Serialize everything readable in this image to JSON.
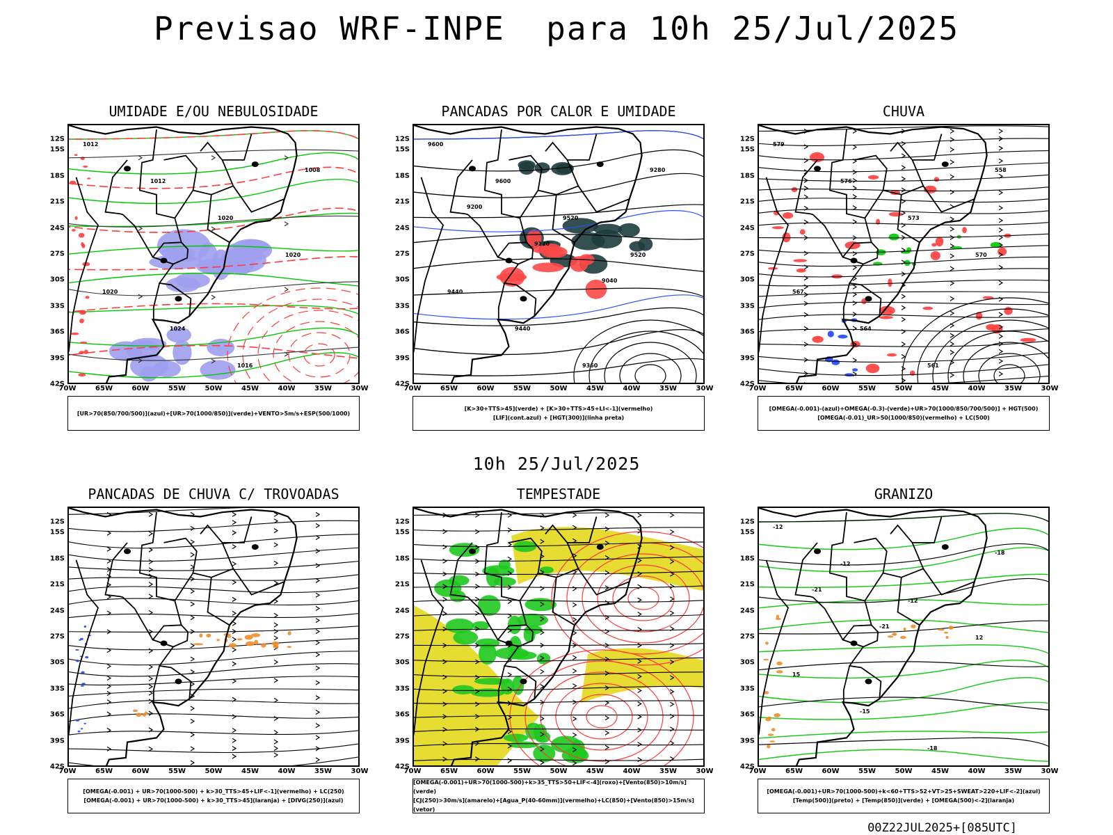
{
  "title": "Previsao WRF-INPE  para 10h 25/Jul/2025",
  "mid_title": "10h 25/Jul/2025",
  "footer": "00Z22JUL2025+[085UTC]",
  "lat_labels": [
    "12S",
    "15S",
    "18S",
    "21S",
    "24S",
    "27S",
    "30S",
    "33S",
    "36S",
    "39S",
    "42S"
  ],
  "lon_labels": [
    "70W",
    "65W",
    "60W",
    "55W",
    "50W",
    "45W",
    "40W",
    "35W",
    "30W"
  ],
  "panels": [
    {
      "title": "UMIDADE E/OU NEBULOSIDADE",
      "legend": [
        "[UR>70(850/700/500)](azul)+[UR>70(1000/850)](verde)+VENTO>5m/s+ESP(500/1000)"
      ],
      "contour_labels": [
        "1012",
        "1012",
        "1020",
        "1020",
        "1020",
        "1024",
        "1016",
        "1008"
      ],
      "colors": {
        "shade": "#9f9ff0",
        "lines": "#00c800",
        "dash": "#ff3c3c"
      }
    },
    {
      "title": "PANCADAS POR CALOR E UMIDADE",
      "legend": [
        "[K>30+TTS>45](verde) + [K>30+TTS>45+LI<-1](vermelho)",
        "[LIF](cont.azul) + [HGT(300)](linha preta)"
      ],
      "contour_labels": [
        "9600",
        "9600",
        "9520",
        "9520",
        "9440",
        "9440",
        "9360",
        "9280",
        "9200",
        "9120",
        "9040"
      ],
      "colors": {
        "shade": "#ff4848",
        "dark": "#1e3c3c",
        "lines": "#2850ff"
      }
    },
    {
      "title": "CHUVA",
      "legend": [
        "[OMEGA(-0.001)-(azul)+OMEGA(-0.3)-(verde)+UR>70(1000/850/700/500)] + HGT(500)",
        "[OMEGA(-0.01)_UR>50(1000/850)(vermelho) + LC(500)"
      ],
      "contour_labels": [
        "579",
        "576",
        "573",
        "570",
        "567",
        "564",
        "561",
        "558"
      ],
      "colors": {
        "shade": "#ff3c3c",
        "green": "#00c800",
        "blue": "#1e46ff"
      }
    },
    {
      "title": "PANCADAS DE CHUVA C/ TROVOADAS",
      "legend": [
        "[OMEGA(-0.001) + UR>70(1000-500) + k>30_TTS>45+LIF<-1](vermelho) + LC(250)",
        "[OMEGA(-0.001) + UR>70(1000-500) + k>30_TTS>45](laranja) + [DIVG(250)](azul)"
      ],
      "contour_labels": [],
      "colors": {
        "orange": "#f08c28",
        "blue": "#1e46ff"
      }
    },
    {
      "title": "TEMPESTADE",
      "legend": [
        "[OMEGA(-0.001)+UR>70(1000-500)+k>35_TTS>50+LIF<-4](roxo)+[Vento(850)>10m/s](verde)",
        "[CJ(250)>30m/s](amarelo)+[Agua_P(40-60mm)](vermelho)+LC(850)+[Vento(850)>15m/s](vetor)"
      ],
      "contour_labels": [],
      "colors": {
        "yellow": "#e6dc32",
        "green": "#1ec81e",
        "red": "#ff3c3c"
      }
    },
    {
      "title": "GRANIZO",
      "legend": [
        "[OMEGA(-0.001)+UR>70(1000-500)+k<60+TTS>52+VT>25+SWEAT>220+LIF<-2](azul)",
        "[Temp(500)](preto) + [Temp(850)](verde) + [OMEGA(500)<-2](laranja)"
      ],
      "contour_labels": [
        "-12",
        "-12",
        "-12",
        "12",
        "15",
        "-15",
        "-18",
        "-18",
        "-21",
        "-21"
      ],
      "colors": {
        "green": "#1ec81e",
        "orange": "#f08c28"
      }
    }
  ]
}
